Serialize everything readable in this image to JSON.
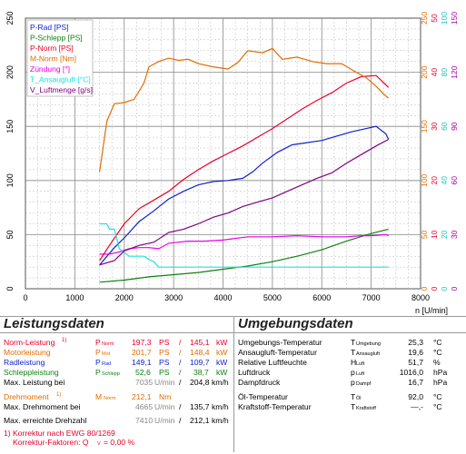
{
  "chart_data": {
    "type": "line",
    "xlabel": "n [U/min]",
    "xlim": [
      0,
      8000
    ],
    "x_ticks": [
      "0",
      "1000",
      "2000",
      "3000",
      "4000",
      "5000",
      "6000",
      "7000",
      "8000"
    ],
    "y_left_ticks": [
      "0",
      "50",
      "100",
      "150",
      "200",
      "250"
    ],
    "ylim": [
      0,
      250
    ],
    "right_axes": [
      {
        "color": "#e26c00",
        "ticks": [
          "0",
          "50",
          "100",
          "150",
          "200",
          "250"
        ]
      },
      {
        "color": "#e8002a",
        "ticks": [
          "0",
          "10",
          "20",
          "30",
          "40",
          "50"
        ]
      },
      {
        "color": "#20c0c0",
        "ticks": [
          "0",
          "20",
          "40",
          "60",
          "80",
          "100"
        ]
      },
      {
        "color": "#a000a0",
        "ticks": [
          "0",
          "30",
          "60",
          "90",
          "120",
          "150"
        ]
      }
    ],
    "series": [
      {
        "name": "P-Rad [PS]",
        "color": "#1020d0",
        "x": [
          1500,
          1800,
          2000,
          2300,
          2600,
          2900,
          3200,
          3500,
          3800,
          4100,
          4400,
          4600,
          4800,
          5100,
          5400,
          5700,
          6000,
          6300,
          6600,
          6900,
          7100,
          7300,
          7350
        ],
        "y": [
          22,
          38,
          47,
          62,
          72,
          83,
          90,
          96,
          99,
          100,
          102,
          108,
          116,
          126,
          133,
          135,
          137,
          141,
          145,
          148,
          150,
          143,
          138
        ]
      },
      {
        "name": "P-Schlepp [PS]",
        "color": "#108010",
        "x": [
          1500,
          2000,
          2500,
          3000,
          3500,
          4000,
          4500,
          5000,
          5500,
          6000,
          6500,
          7000,
          7350
        ],
        "y": [
          6,
          8,
          11,
          13,
          15,
          18,
          21,
          25,
          30,
          36,
          44,
          51,
          55
        ]
      },
      {
        "name": "P-Norm [PS]",
        "color": "#e8002a",
        "x": [
          1500,
          1700,
          2000,
          2300,
          2600,
          2900,
          3200,
          3500,
          3800,
          4100,
          4400,
          4700,
          5000,
          5300,
          5600,
          5900,
          6200,
          6500,
          6800,
          7100,
          7350
        ],
        "y": [
          26,
          40,
          60,
          74,
          82,
          90,
          101,
          110,
          118,
          125,
          132,
          140,
          148,
          157,
          166,
          174,
          181,
          190,
          196,
          197,
          186
        ]
      },
      {
        "name": "M-Norm [Nm]",
        "color": "#e26c00",
        "x": [
          1500,
          1650,
          1800,
          2000,
          2200,
          2400,
          2500,
          2700,
          2900,
          3100,
          3300,
          3500,
          3800,
          4100,
          4300,
          4500,
          4800,
          5000,
          5200,
          5500,
          5800,
          6100,
          6400,
          6700,
          6900,
          7100,
          7250,
          7350
        ],
        "y": [
          108,
          155,
          171,
          172,
          175,
          190,
          205,
          210,
          213,
          211,
          212,
          208,
          205,
          203,
          209,
          220,
          218,
          222,
          212,
          214,
          210,
          208,
          208,
          200,
          195,
          187,
          180,
          176
        ]
      },
      {
        "name": "Zündung [°]",
        "color": "#e800e8",
        "x": [
          1500,
          1700,
          1900,
          2100,
          2300,
          2500,
          2700,
          2900,
          3100,
          3300,
          3600,
          4000,
          4500,
          5000,
          5500,
          6000,
          6500,
          6800,
          7000,
          7300,
          7350
        ],
        "y": [
          32,
          32,
          34,
          37,
          38,
          38,
          37,
          42,
          43,
          44,
          44,
          45,
          48,
          48,
          49,
          48,
          48,
          49,
          49,
          50,
          49
        ]
      },
      {
        "name": "T_Ansaugluft [°C]",
        "color": "#20e0e0",
        "x": [
          1500,
          1650,
          1700,
          1800,
          1900,
          2100,
          2300,
          2400,
          2500,
          2600,
          2700,
          2800,
          3500,
          5000,
          7350
        ],
        "y": [
          60,
          60,
          55,
          55,
          37,
          30,
          30,
          30,
          27,
          25,
          20,
          20,
          20,
          20,
          20
        ]
      },
      {
        "name": "V_Luftmenge [g/s]",
        "color": "#800080",
        "x": [
          1500,
          1800,
          2000,
          2300,
          2600,
          2900,
          3200,
          3500,
          3800,
          4100,
          4400,
          4700,
          5000,
          5300,
          5600,
          5900,
          6200,
          6500,
          6800,
          7100,
          7350
        ],
        "y": [
          22,
          26,
          35,
          40,
          43,
          52,
          55,
          60,
          66,
          70,
          76,
          80,
          84,
          90,
          96,
          102,
          107,
          116,
          124,
          132,
          138
        ]
      }
    ]
  },
  "legend": [
    {
      "label": "P-Rad [PS]",
      "color": "#1020d0"
    },
    {
      "label": "P-Schlepp [PS]",
      "color": "#108010"
    },
    {
      "label": "P-Norm [PS]",
      "color": "#e8002a"
    },
    {
      "label": "M-Norm [Nm]",
      "color": "#e26c00"
    },
    {
      "label": "Zündung [°]",
      "color": "#e800e8"
    },
    {
      "label": "T_Ansaugluft [°C]",
      "color": "#20e0e0"
    },
    {
      "label": "V_Luftmenge [g/s]",
      "color": "#800080"
    }
  ],
  "left_panel": {
    "title": "Leistungsdaten",
    "norm": {
      "label": "Norm-Leistung",
      "footnote": "1)",
      "sym": "P",
      "sub": "Norm",
      "v1": "197,3",
      "u1": "PS",
      "sep": "/",
      "v2": "145,1",
      "u2": "kW"
    },
    "motor": {
      "label": "Motorleistung",
      "sym": "P",
      "sub": "Mot",
      "v1": "201,7",
      "u1": "PS",
      "sep": "/",
      "v2": "148,4",
      "u2": "kW"
    },
    "rad": {
      "label": "Radleistung",
      "sym": "P",
      "sub": "Rad",
      "v1": "149,1",
      "u1": "PS",
      "sep": "/",
      "v2": "109,7",
      "u2": "kW"
    },
    "schlepp": {
      "label": "Schleppleistung",
      "sym": "P",
      "sub": "Schlepp",
      "v1": "52,6",
      "u1": "PS",
      "sep": "/",
      "v2": "38,7",
      "u2": "kW"
    },
    "maxleist": {
      "label": "Max. Leistung bei",
      "v1": "7035",
      "u1": "U/min",
      "sep": "/",
      "v2": "204,8",
      "u2": "km/h"
    },
    "drehmoment": {
      "label": "Drehmoment",
      "footnote": "1)",
      "sym": "M",
      "sub": "Norm",
      "v1": "212,1",
      "u1": "Nm"
    },
    "maxdreh": {
      "label": "Max. Drehmoment bei",
      "v1": "4665",
      "u1": "U/min",
      "sep": "/",
      "v2": "135,7",
      "u2": "km/h"
    },
    "drehzahl": {
      "label": "Max. erreichte Drehzahl",
      "v1": "7410",
      "u1": "U/min",
      "sep": "/",
      "v2": "212,1",
      "u2": "km/h"
    },
    "foot1": "1) Korrektur nach EWG 80/1269",
    "foot2": "Korrektur-Faktoren: Q",
    "foot2_sub": "V",
    "foot2_val": "=  0,00 %"
  },
  "right_panel": {
    "title": "Umgebungsdaten",
    "rows": [
      {
        "label": "Umgebungs-Temperatur",
        "sym": "T",
        "sub": "Umgebung",
        "val": "25,3",
        "unit": "°C"
      },
      {
        "label": "Ansaugluft-Temperatur",
        "sym": "T",
        "sub": "Ansaugluft",
        "val": "19,6",
        "unit": "°C"
      },
      {
        "label": "Relative Luftfeuchte",
        "sym": "H",
        "sub": "Luft",
        "val": "51,7",
        "unit": "%"
      },
      {
        "label": "Luftdruck",
        "sym": "p",
        "sub": "Luft",
        "val": "1016,0",
        "unit": "hPa"
      },
      {
        "label": "Dampfdruck",
        "sym": "p",
        "sub": "Dampf",
        "val": "16,7",
        "unit": "hPa"
      },
      {
        "label": "Öl-Temperatur",
        "sym": "T",
        "sub": "Öl",
        "val": "92,0",
        "unit": "°C"
      },
      {
        "label": "Kraftstoff-Temperatur",
        "sym": "T",
        "sub": "Kraftstoff",
        "val": "—,-",
        "unit": "°C"
      }
    ]
  }
}
